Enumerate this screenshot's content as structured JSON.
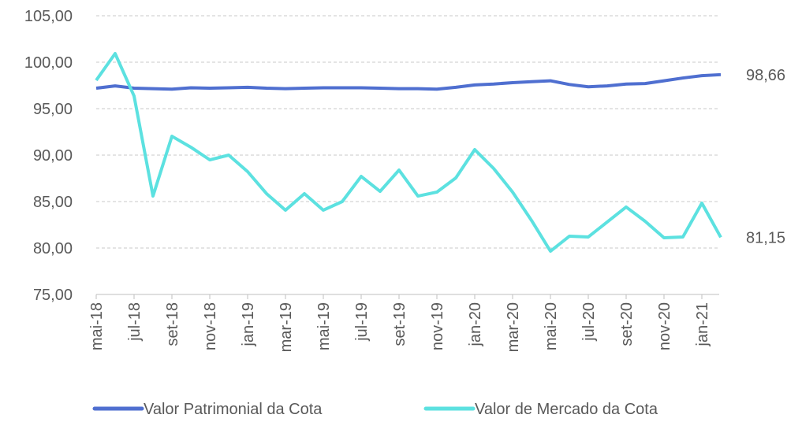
{
  "chart_data": {
    "type": "line",
    "categories": [
      "mai-18",
      null,
      "jul-18",
      null,
      "set-18",
      null,
      "nov-18",
      null,
      "jan-19",
      null,
      "mar-19",
      null,
      "mai-19",
      null,
      "jul-19",
      null,
      "set-19",
      null,
      "nov-19",
      null,
      "jan-20",
      null,
      "mar-20",
      null,
      "mai-20",
      null,
      "jul-20",
      null,
      "set-20",
      null,
      "nov-20",
      null,
      "jan-21",
      null
    ],
    "series": [
      {
        "name": "Valor Patrimonial da Cota",
        "color": "#4f6fd0",
        "values": [
          97.2,
          97.45,
          97.2,
          97.15,
          97.1,
          97.25,
          97.2,
          97.25,
          97.3,
          97.2,
          97.15,
          97.2,
          97.25,
          97.25,
          97.25,
          97.2,
          97.15,
          97.15,
          97.1,
          97.3,
          97.55,
          97.65,
          97.8,
          97.9,
          98.0,
          97.6,
          97.35,
          97.45,
          97.65,
          97.7,
          98.0,
          98.3,
          98.55,
          98.66
        ],
        "value_labels": [
          null,
          null,
          null,
          null,
          null,
          null,
          null,
          null,
          null,
          null,
          null,
          null,
          null,
          null,
          null,
          null,
          null,
          null,
          null,
          null,
          null,
          null,
          null,
          null,
          null,
          null,
          null,
          null,
          null,
          null,
          null,
          null,
          null,
          "98,66"
        ]
      },
      {
        "name": "Valor de Mercado da Cota",
        "color": "#5ce1e0",
        "values": [
          98.05,
          100.93,
          96.36,
          85.59,
          92.03,
          90.85,
          89.49,
          90.0,
          88.22,
          85.85,
          84.07,
          85.85,
          84.07,
          85.0,
          87.71,
          86.1,
          88.39,
          85.59,
          86.02,
          87.54,
          90.59,
          88.56,
          86.02,
          82.97,
          79.66,
          81.27,
          81.19,
          82.8,
          84.41,
          82.88,
          81.1,
          81.19,
          84.83,
          81.15
        ],
        "value_labels": [
          null,
          null,
          null,
          null,
          null,
          null,
          null,
          null,
          null,
          null,
          null,
          null,
          null,
          null,
          null,
          null,
          null,
          null,
          null,
          null,
          null,
          null,
          null,
          null,
          null,
          null,
          null,
          null,
          null,
          null,
          null,
          null,
          null,
          "81,15"
        ]
      }
    ],
    "ylim": [
      75,
      105
    ],
    "yticks": [
      {
        "value": 75,
        "label": "75,00"
      },
      {
        "value": 80,
        "label": "80,00"
      },
      {
        "value": 85,
        "label": "85,00"
      },
      {
        "value": 90,
        "label": "90,00"
      },
      {
        "value": 95,
        "label": "95,00"
      },
      {
        "value": 100,
        "label": "100,00"
      },
      {
        "value": 105,
        "label": "105,00"
      }
    ],
    "grid": true,
    "legend": "bottom"
  }
}
